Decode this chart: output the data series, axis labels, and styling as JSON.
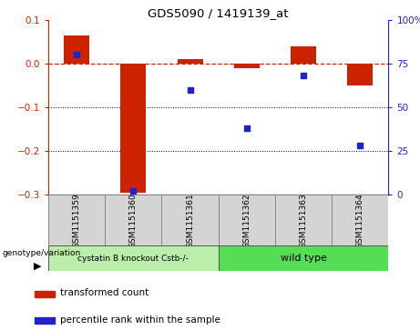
{
  "title": "GDS5090 / 1419139_at",
  "samples": [
    "GSM1151359",
    "GSM1151360",
    "GSM1151361",
    "GSM1151362",
    "GSM1151363",
    "GSM1151364"
  ],
  "red_values": [
    0.065,
    -0.295,
    0.01,
    -0.01,
    0.04,
    -0.05
  ],
  "blue_values": [
    80,
    2,
    60,
    38,
    68,
    28
  ],
  "ylim_left": [
    -0.3,
    0.1
  ],
  "ylim_right": [
    0,
    100
  ],
  "yticks_left": [
    -0.3,
    -0.2,
    -0.1,
    0.0,
    0.1
  ],
  "yticks_right": [
    0,
    25,
    50,
    75,
    100
  ],
  "red_color": "#cc2200",
  "blue_color": "#2222cc",
  "group1_label": "cystatin B knockout Cstb-/-",
  "group2_label": "wild type",
  "group1_indices": [
    0,
    1,
    2
  ],
  "group2_indices": [
    3,
    4,
    5
  ],
  "group1_color": "#bbeeaa",
  "group2_color": "#55dd55",
  "bar_width": 0.45,
  "legend_label_red": "transformed count",
  "legend_label_blue": "percentile rank within the sample",
  "genotype_label": "genotype/variation"
}
